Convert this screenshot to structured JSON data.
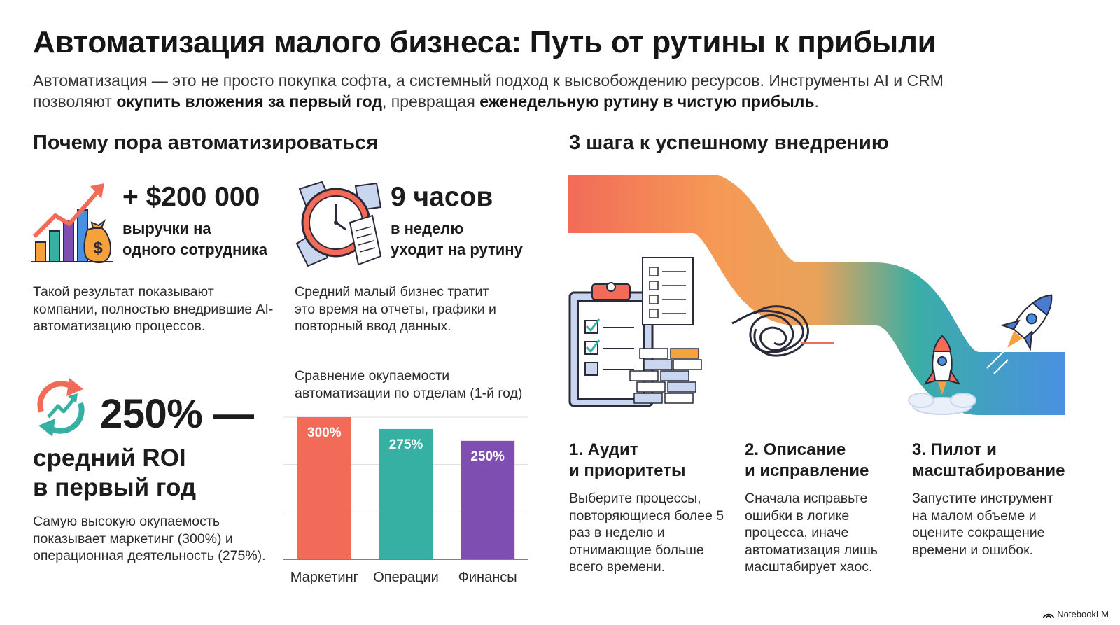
{
  "header": {
    "title": "Автоматизация малого бизнеса: Путь от рутины к прибыли",
    "intro": {
      "part1": "Автоматизация — это не просто покупка софта, а системный подход к высвобождению ресурсов. Инструменты AI и CRM позволяют ",
      "bold1": "окупить вложения за первый год",
      "part2": ", превращая ",
      "bold2": "еженедельную рутину в чистую прибыль",
      "part3": "."
    }
  },
  "left": {
    "heading": "Почему пора автоматизироваться",
    "stat_revenue": {
      "value": "+ $200 000",
      "line1": "выручки на",
      "line2": "одного сотрудника",
      "desc": "Такой результат показывают компании, полностью внедрившие AI-автоматизацию процессов.",
      "icon": "growth-chart-money-bag-icon"
    },
    "stat_hours": {
      "value": "9 часов",
      "line1": "в неделю",
      "line2": "уходит на рутину",
      "desc": "Средний малый бизнес тратит это время на отчеты, графики и повторный ввод данных.",
      "icon": "alarm-clock-documents-icon"
    },
    "stat_roi": {
      "value": "250% —",
      "line1": "средний ROI",
      "line2": "в первый год",
      "desc": "Самую высокую окупаемость показывает маркетинг (300%) и операционная деятельность (275%).",
      "icon": "refresh-growth-icon"
    }
  },
  "chart_data": {
    "type": "bar",
    "title": "Сравнение окупаемости автоматизации по отделам (1-й год)",
    "categories": [
      "Маркетинг",
      "Операции",
      "Финансы"
    ],
    "values": [
      300,
      275,
      250
    ],
    "value_labels": [
      "300%",
      "275%",
      "250%"
    ],
    "colors": [
      "#f26b58",
      "#35b0a3",
      "#7e4fb1"
    ],
    "ylim": [
      0,
      300
    ],
    "grid": true,
    "xlabel": "",
    "ylabel": ""
  },
  "right": {
    "heading": "3 шага к успешному внедрению",
    "steps": [
      {
        "title1": "1. Аудит",
        "title2": "и приоритеты",
        "text": "Выберите процессы, повторяющиеся более 5 раз в неделю и отнимающие больше всего времени.",
        "icon": "clipboard-checklist-icon"
      },
      {
        "title1": "2. Описание",
        "title2": "и исправление",
        "text": "Сначала исправьте ошибки в логике процесса, иначе автоматизация лишь масштабирует хаос.",
        "icon": "tangled-knot-icon"
      },
      {
        "title1": "3. Пилот и",
        "title2": "масштабирование",
        "text": "Запустите инструмент на малом объеме и оцените сокращение времени и ошибок.",
        "icon": "rocket-icon"
      }
    ],
    "path_colors": [
      "#f26b58",
      "#f59a55",
      "#3aaea5",
      "#4a90e2"
    ]
  },
  "footer": {
    "brand": "NotebookLM",
    "icon": "notebooklm-logo-icon"
  }
}
